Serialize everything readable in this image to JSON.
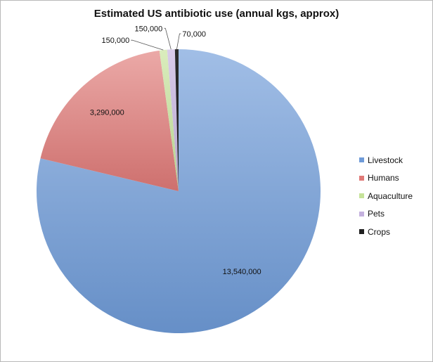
{
  "chart_data": {
    "type": "pie",
    "title": "Estimated US antibiotic use (annual kgs, approx)",
    "categories": [
      "Livestock",
      "Humans",
      "Aquaculture",
      "Pets",
      "Crops"
    ],
    "values": [
      13540000,
      3290000,
      150000,
      150000,
      70000
    ],
    "data_labels": [
      "13,540,000",
      "3,290,000",
      "150,000",
      "150,000",
      "70,000"
    ],
    "colors": [
      "#6f9bd8",
      "#e07a78",
      "#c6e39a",
      "#c4b1de",
      "#1f1f1f"
    ],
    "legend_position": "right",
    "start_angle": "12 o'clock, clockwise"
  }
}
